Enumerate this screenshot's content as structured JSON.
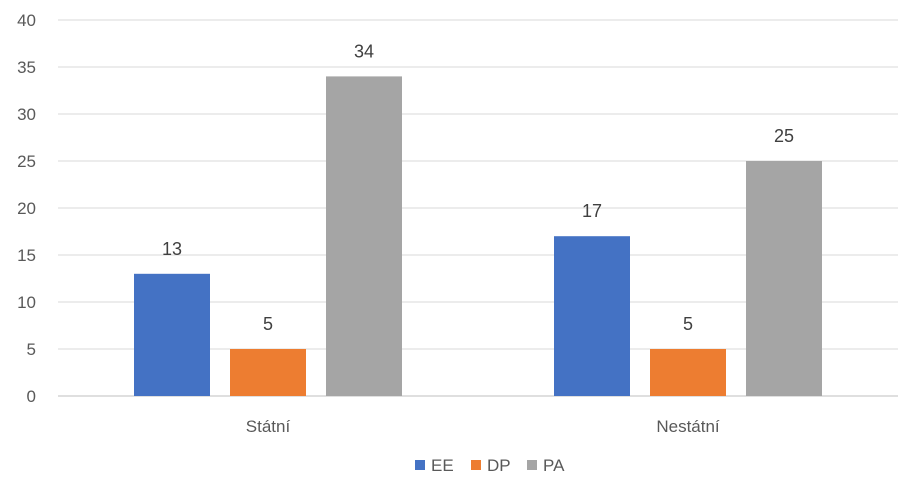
{
  "chart_data": {
    "type": "bar",
    "title": "",
    "xlabel": "",
    "ylabel": "",
    "categories": [
      "Státní",
      "Nestátní"
    ],
    "series": [
      {
        "name": "EE",
        "values": [
          13,
          17
        ],
        "color": "#4472C4"
      },
      {
        "name": "DP",
        "values": [
          5,
          5
        ],
        "color": "#ED7D31"
      },
      {
        "name": "PA",
        "values": [
          34,
          25
        ],
        "color": "#A5A5A5"
      }
    ],
    "ylim": [
      0,
      40
    ],
    "yticks": [
      0,
      5,
      10,
      15,
      20,
      25,
      30,
      35,
      40
    ],
    "grid": true,
    "legend_position": "bottom",
    "data_labels": true
  }
}
